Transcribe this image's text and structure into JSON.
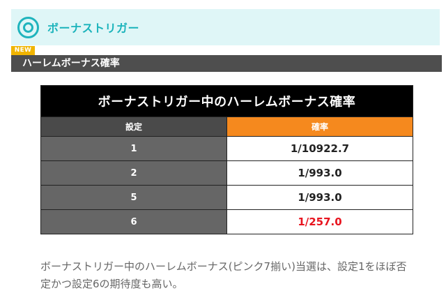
{
  "section": {
    "title": "ボーナストリガー"
  },
  "badge": "NEW",
  "subheader": "ハーレムボーナス確率",
  "table": {
    "caption": "ボーナストリガー中のハーレムボーナス確率",
    "headers": {
      "setting": "設定",
      "rate": "確率"
    },
    "rows": [
      {
        "setting": "1",
        "rate": "1/10922.7"
      },
      {
        "setting": "2",
        "rate": "1/993.0"
      },
      {
        "setting": "5",
        "rate": "1/993.0"
      },
      {
        "setting": "6",
        "rate": "1/257.0"
      }
    ],
    "highlight_color": "#e8141f"
  },
  "description": "ボーナストリガー中のハーレムボーナス(ピンク7揃い)当選は、設定1をほぼ否定かつ設定6の期待度も高い。",
  "colors": {
    "accent_teal": "#1ab3bb",
    "header_bg": "#dff6f7",
    "badge": "#f0b400",
    "rate_header": "#f5891e"
  }
}
